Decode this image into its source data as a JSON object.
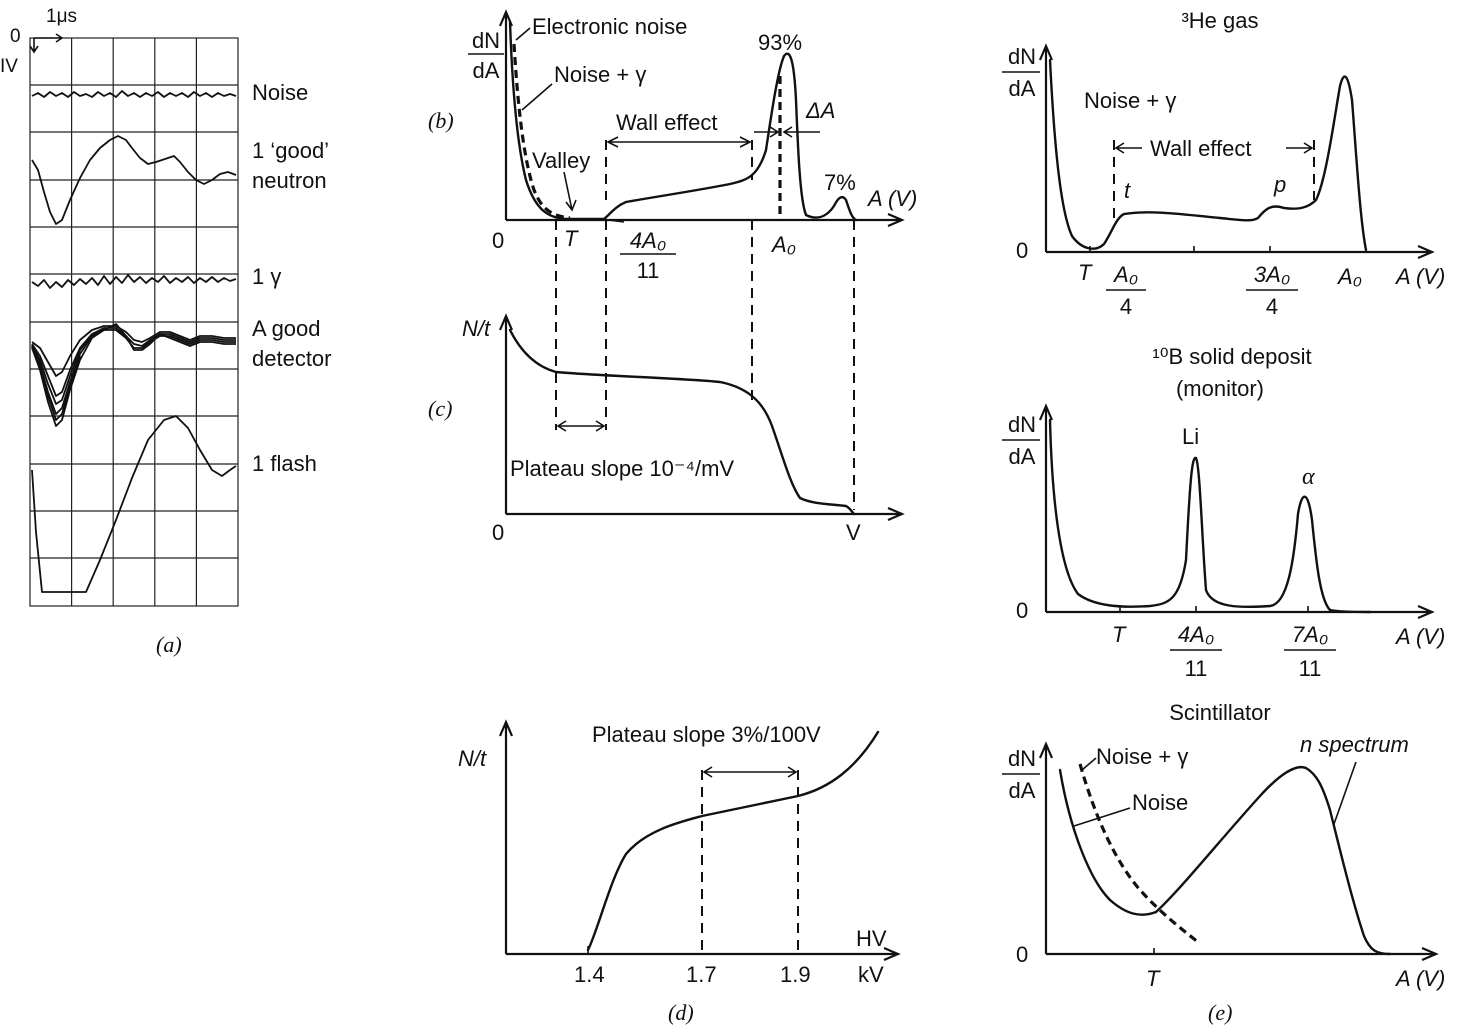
{
  "panel_a": {
    "time_scale": "1μs",
    "zero_label": "0",
    "volt_label": "IV",
    "traces": [
      "Noise",
      "1 ‘good’",
      "neutron",
      "1 γ",
      "A good",
      "detector",
      "1 flash"
    ],
    "caption": "(a)"
  },
  "panel_b": {
    "caption": "(b)",
    "ylabel_top": "dN",
    "ylabel_bottom": "dA",
    "electronic_noise": "Electronic noise",
    "noise_gamma": "Noise + γ",
    "valley": "Valley",
    "wall_effect": "Wall effect",
    "delta_a": "ΔA",
    "pct_main": "93%",
    "pct_small": "7%",
    "xlabel": "A (V)",
    "zero": "0",
    "T": "T",
    "frac_num": "4A₀",
    "frac_den": "11",
    "A0": "A₀"
  },
  "panel_c": {
    "caption": "(c)",
    "ylabel": "N/t",
    "plateau": "Plateau slope 10⁻⁴/mV",
    "zero": "0",
    "xlabel": "V"
  },
  "panel_d": {
    "caption": "(d)",
    "ylabel": "N/t",
    "plateau": "Plateau slope 3%/100V",
    "xlabel_top": "HV",
    "xlabel_bottom": "kV",
    "ticks": [
      "1.4",
      "1.7",
      "1.9"
    ]
  },
  "panel_e_he": {
    "title": "³He gas",
    "ylabel_top": "dN",
    "ylabel_bottom": "dA",
    "noise_gamma": "Noise + γ",
    "wall_effect": "Wall effect",
    "t": "t",
    "p": "p",
    "zero": "0",
    "T": "T",
    "f1_num": "A₀",
    "f1_den": "4",
    "f2_num": "3A₀",
    "f2_den": "4",
    "A0": "A₀",
    "xlabel": "A (V)"
  },
  "panel_e_b10": {
    "title_line1": "¹⁰B solid deposit",
    "title_line2": "(monitor)",
    "ylabel_top": "dN",
    "ylabel_bottom": "dA",
    "Li": "Li",
    "alpha": "α",
    "zero": "0",
    "T": "T",
    "f1_num": "4A₀",
    "f1_den": "11",
    "f2_num": "7A₀",
    "f2_den": "11",
    "xlabel": "A (V)"
  },
  "panel_e_scint": {
    "title": "Scintillator",
    "ylabel_top": "dN",
    "ylabel_bottom": "dA",
    "noise_gamma": "Noise + γ",
    "noise": "Noise",
    "n_spectrum": "n spectrum",
    "zero": "0",
    "T": "T",
    "xlabel": "A (V)",
    "caption": "(e)"
  }
}
